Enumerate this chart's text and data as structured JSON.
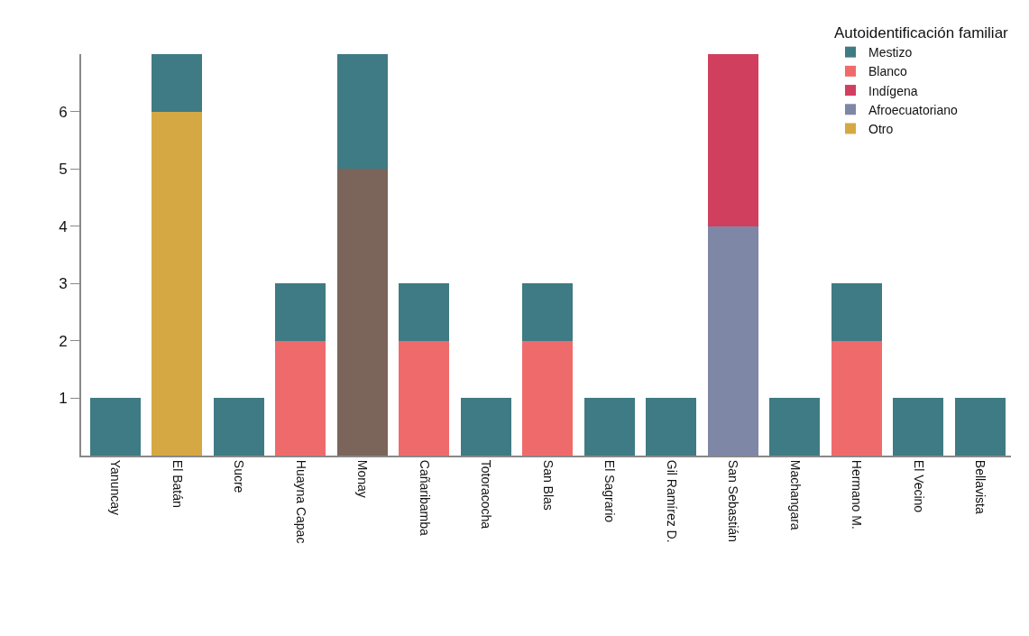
{
  "chart_data": {
    "type": "bar",
    "stacked": true,
    "legend_title": "Autoidentificación familiar",
    "categories": [
      "Yanuncay",
      "El Batán",
      "Sucre",
      "Huayna Capac",
      "Monay",
      "Cañaribamba",
      "Totoracocha",
      "San Blas",
      "El Sagrario",
      "Gil Ramírez D.",
      "San Sebastián",
      "Machangara",
      "Hermano M.",
      "El Vecino",
      "Bellavista"
    ],
    "series": [
      {
        "name": "Otro",
        "color": "#d6a843",
        "values": [
          null,
          6,
          null,
          null,
          null,
          null,
          null,
          null,
          null,
          null,
          null,
          null,
          null,
          null,
          null
        ]
      },
      {
        "name": "Afroecuatoriano",
        "color": "#7f87a6",
        "values": [
          null,
          null,
          null,
          null,
          null,
          null,
          null,
          null,
          null,
          null,
          4,
          null,
          null,
          null,
          null
        ]
      },
      {
        "name": "Indígena",
        "color": "#d13f5f",
        "values": [
          null,
          null,
          null,
          null,
          null,
          null,
          null,
          null,
          null,
          null,
          3,
          null,
          null,
          null,
          null
        ]
      },
      {
        "name": "Blanco",
        "color": "#ef6b6b",
        "values": [
          null,
          null,
          null,
          2,
          null,
          2,
          null,
          2,
          null,
          null,
          null,
          null,
          2,
          null,
          null
        ]
      },
      {
        "color": "#7b6459",
        "values": [
          null,
          null,
          null,
          null,
          5,
          null,
          null,
          null,
          null,
          null,
          null,
          null,
          null,
          null,
          null
        ]
      },
      {
        "name": "Mestizo",
        "color": "#3f7b84",
        "values": [
          1,
          1,
          1,
          1,
          2,
          1,
          1,
          1,
          1,
          1,
          null,
          1,
          1,
          1,
          1
        ]
      }
    ],
    "ylim": [
      0,
      7
    ],
    "yticks": [
      1,
      2,
      3,
      4,
      5,
      6
    ],
    "legend": "top right"
  }
}
